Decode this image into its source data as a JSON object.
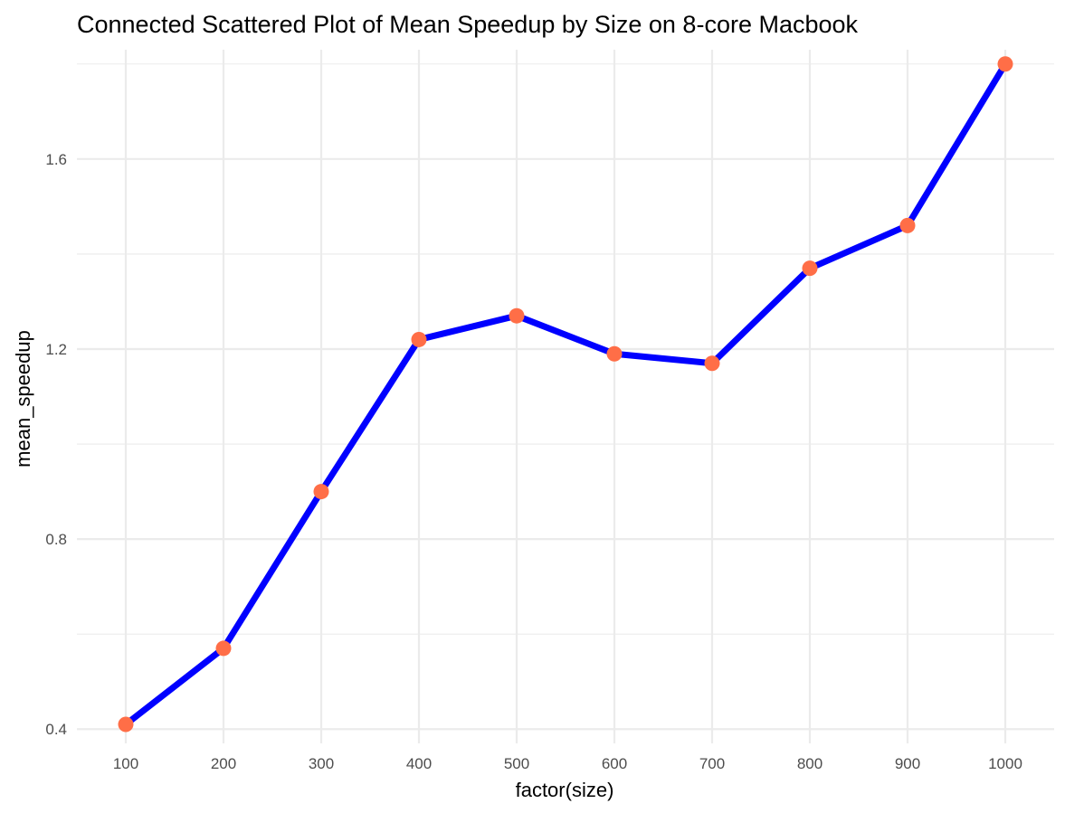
{
  "chart_data": {
    "type": "line",
    "title": "Connected Scattered Plot of Mean Speedup by Size on 8-core Macbook",
    "xlabel": "factor(size)",
    "ylabel": "mean_speedup",
    "categories": [
      "100",
      "200",
      "300",
      "400",
      "500",
      "600",
      "700",
      "800",
      "900",
      "1000"
    ],
    "values": [
      0.41,
      0.57,
      0.9,
      1.22,
      1.27,
      1.19,
      1.17,
      1.37,
      1.46,
      1.8
    ],
    "ylim": [
      0.37,
      1.83
    ],
    "yticks": [
      0.4,
      0.8,
      1.2,
      1.6
    ],
    "ytick_labels": [
      "0.4",
      "0.8",
      "1.2",
      "1.6"
    ],
    "grid": true,
    "line_color": "#0000ff",
    "point_color": "#ff6e47",
    "grid_color": "#ebebeb"
  }
}
